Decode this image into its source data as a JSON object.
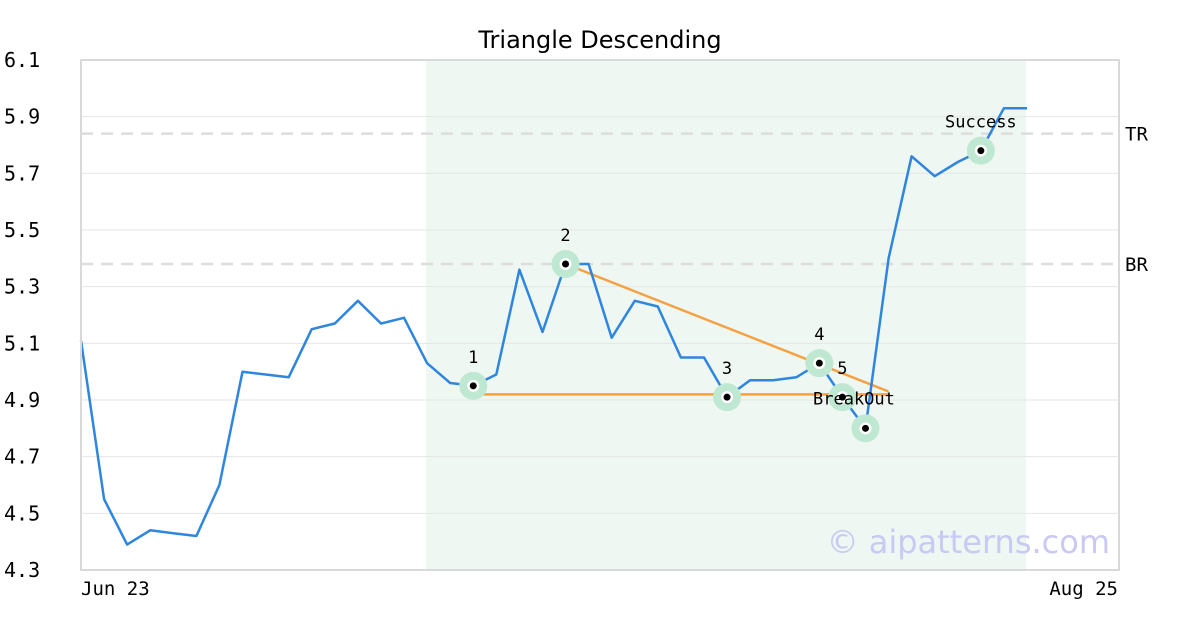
{
  "chart_data": {
    "type": "line",
    "title": "Triangle Descending",
    "ylim": [
      4.3,
      6.1
    ],
    "yticks": [
      "6.1",
      "5.9",
      "5.7",
      "5.5",
      "5.3",
      "5.1",
      "4.9",
      "4.7",
      "4.5",
      "4.3"
    ],
    "x_start_label": "Jun 23",
    "x_end_label": "Aug 25",
    "grid": true,
    "series": [
      {
        "values": [
          5.11,
          4.55,
          4.39,
          4.44,
          4.43,
          4.42,
          4.6,
          5.0,
          4.99,
          4.98,
          5.15,
          5.17,
          5.25,
          5.17,
          5.19,
          5.03,
          4.96,
          4.95,
          4.99,
          5.36,
          5.14,
          5.38,
          5.38,
          5.12,
          5.25,
          5.23,
          5.05,
          5.05,
          4.91,
          4.97,
          4.97,
          4.98,
          5.03,
          4.91,
          4.8,
          5.4,
          5.76,
          5.69,
          5.74,
          5.78,
          5.93,
          5.93
        ],
        "color": "#2e86de"
      }
    ],
    "highlight_range": {
      "start_index": 15,
      "end_index": 41,
      "color": "#eef7f2"
    },
    "pattern_lines": [
      {
        "from": [
          17,
          4.92
        ],
        "to": [
          35,
          4.92
        ],
        "color": "#f5a142"
      },
      {
        "from": [
          21,
          5.38
        ],
        "to": [
          35,
          4.93
        ],
        "color": "#f5a142"
      }
    ],
    "points": [
      {
        "label": "1",
        "index": 17,
        "value": 4.95
      },
      {
        "label": "2",
        "index": 21,
        "value": 5.38
      },
      {
        "label": "3",
        "index": 28,
        "value": 4.91
      },
      {
        "label": "4",
        "index": 32,
        "value": 5.03
      },
      {
        "label": "5",
        "index": 33,
        "value": 4.91
      },
      {
        "label": "",
        "index": 34,
        "value": 4.8
      },
      {
        "label": "Success",
        "index": 39,
        "value": 5.78
      }
    ],
    "annotations": [
      {
        "text": "BreakOut",
        "index": 33.5,
        "value": 4.92
      }
    ],
    "levels": [
      {
        "label": "TR",
        "value": 5.84
      },
      {
        "label": "BR",
        "value": 5.38
      }
    ],
    "watermark": "© aipatterns.com"
  }
}
